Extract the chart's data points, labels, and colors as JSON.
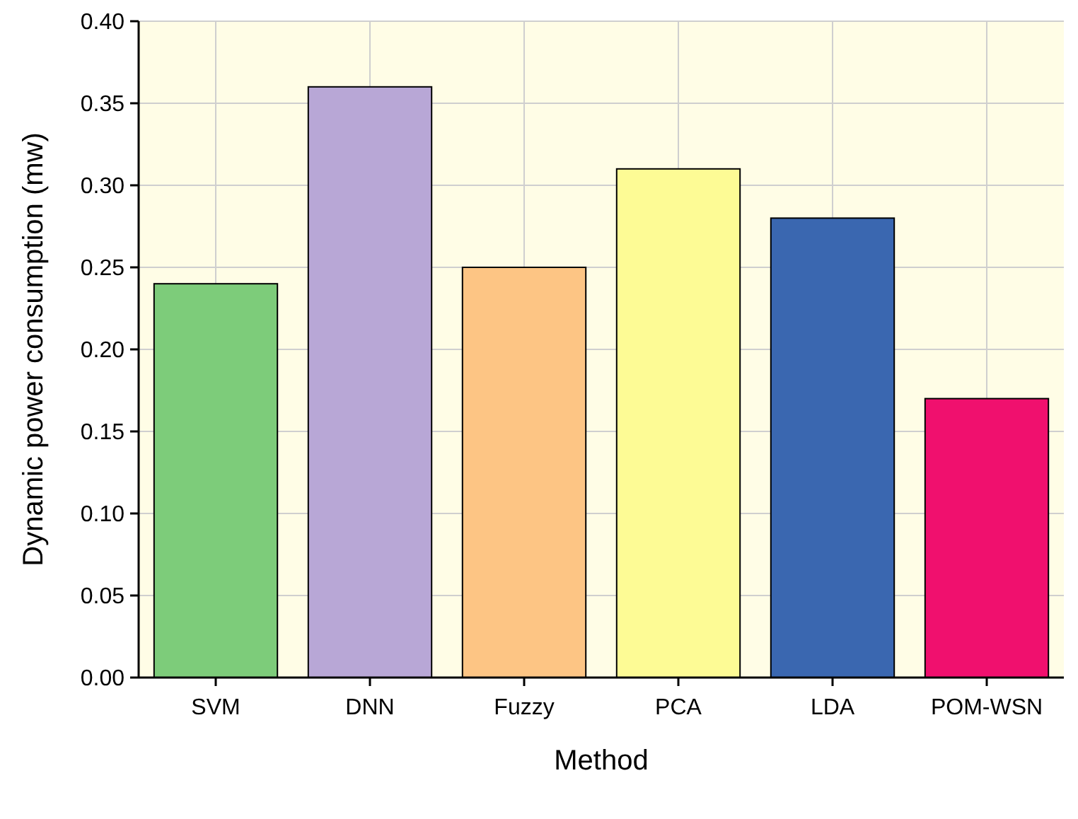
{
  "chart_data": {
    "type": "bar",
    "xlabel": "Method",
    "ylabel": "Dynamic power consumption (mw)",
    "categories": [
      "SVM",
      "DNN",
      "Fuzzy",
      "PCA",
      "LDA",
      "POM-WSN"
    ],
    "values": [
      0.24,
      0.36,
      0.25,
      0.31,
      0.28,
      0.17
    ],
    "colors": [
      "#7dcc7a",
      "#b8a7d6",
      "#fdc584",
      "#fdfb95",
      "#3a67b0",
      "#f0106e"
    ],
    "ylim": [
      0,
      0.4
    ],
    "yticks": [
      {
        "value": 0,
        "label": "0.00"
      },
      {
        "value": 0.05,
        "label": "0.05"
      },
      {
        "value": 0.1,
        "label": "0.10"
      },
      {
        "value": 0.15,
        "label": "0.15"
      },
      {
        "value": 0.2,
        "label": "0.20"
      },
      {
        "value": 0.25,
        "label": "0.25"
      },
      {
        "value": 0.3,
        "label": "0.30"
      },
      {
        "value": 0.35,
        "label": "0.35"
      },
      {
        "value": 0.4,
        "label": "0.40"
      }
    ],
    "grid": true
  }
}
